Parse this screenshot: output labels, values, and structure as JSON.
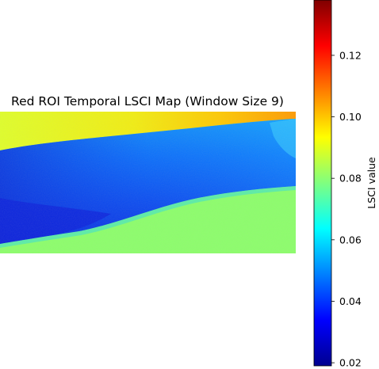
{
  "chart_data": {
    "type": "heatmap",
    "title": "Red ROI Temporal LSCI Map (Window Size 9)",
    "colormap": "jet",
    "colorbar": {
      "label": "LSCI value",
      "range": [
        0.019,
        0.138
      ],
      "ticks": [
        0.02,
        0.04,
        0.06,
        0.08,
        0.1,
        0.12
      ],
      "tick_labels": [
        "0.02",
        "0.04",
        "0.06",
        "0.08",
        "0.10",
        "0.12"
      ]
    },
    "regions": [
      {
        "name": "top background",
        "approx_value": 0.092
      },
      {
        "name": "upper-right corner background",
        "approx_value": 0.115
      },
      {
        "name": "arm upper band",
        "approx_value": 0.062
      },
      {
        "name": "arm core",
        "approx_value": 0.05
      },
      {
        "name": "arm lower-left",
        "approx_value": 0.038
      },
      {
        "name": "bottom background",
        "approx_value": 0.081
      }
    ],
    "grid": false,
    "axes_visible": false
  }
}
